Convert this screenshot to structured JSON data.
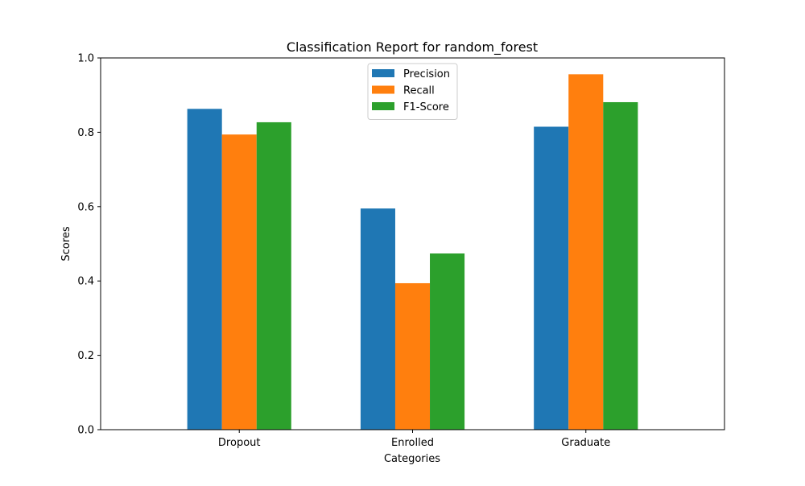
{
  "chart_data": {
    "type": "bar",
    "title": "Classification Report for random_forest",
    "xlabel": "Categories",
    "ylabel": "Scores",
    "categories": [
      "Dropout",
      "Enrolled",
      "Graduate"
    ],
    "ylim": [
      0,
      1.0
    ],
    "yticks": [
      "0.0",
      "0.2",
      "0.4",
      "0.6",
      "0.8",
      "1.0"
    ],
    "grid": false,
    "legend_position": "top-center",
    "series": [
      {
        "name": "Precision",
        "color": "#1f77b4",
        "values": [
          0.863,
          0.595,
          0.815
        ]
      },
      {
        "name": "Recall",
        "color": "#ff7f0e",
        "values": [
          0.794,
          0.394,
          0.956
        ]
      },
      {
        "name": "F1-Score",
        "color": "#2ca02c",
        "values": [
          0.827,
          0.474,
          0.881
        ]
      }
    ]
  }
}
